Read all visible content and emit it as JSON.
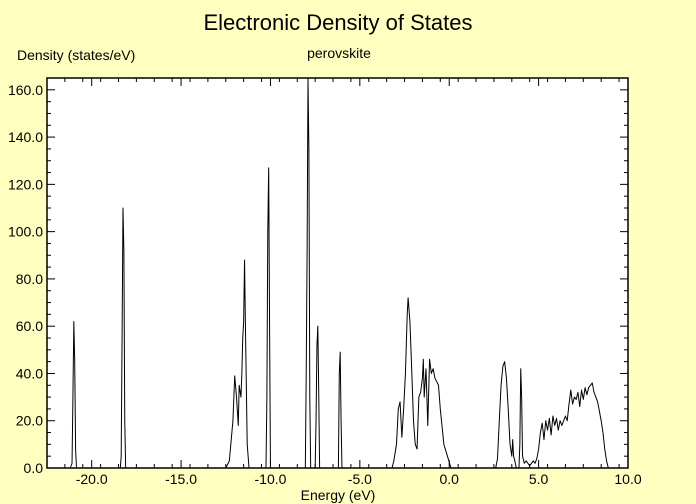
{
  "chart_data": {
    "type": "line",
    "title": "Electronic Density of States",
    "subtitle": "perovskite",
    "xlabel": "Energy (eV)",
    "ylabel": "Density (states/eV)",
    "xlim": [
      -22.5,
      10.0
    ],
    "ylim": [
      0,
      165
    ],
    "xticks": [
      -20,
      -15,
      -10,
      -5,
      0,
      5,
      10
    ],
    "xtick_labels": [
      "-20.0",
      "-15.0",
      "-10.0",
      "-5.0",
      "0.0",
      "5.0",
      "10.0"
    ],
    "yticks": [
      0,
      20,
      40,
      60,
      80,
      100,
      120,
      140,
      160
    ],
    "ytick_labels": [
      "0.0",
      "20.0",
      "40.0",
      "60.0",
      "80.0",
      "100.0",
      "120.0",
      "140.0",
      "160.0"
    ],
    "grid": false,
    "series": [
      {
        "color": "#000000",
        "points": [
          [
            -22.5,
            0
          ],
          [
            -21.2,
            0
          ],
          [
            -21.1,
            2
          ],
          [
            -21.05,
            30
          ],
          [
            -21.0,
            62
          ],
          [
            -20.95,
            45
          ],
          [
            -20.9,
            8
          ],
          [
            -20.85,
            0
          ],
          [
            -18.4,
            0
          ],
          [
            -18.35,
            5
          ],
          [
            -18.3,
            55
          ],
          [
            -18.25,
            110
          ],
          [
            -18.2,
            92
          ],
          [
            -18.15,
            20
          ],
          [
            -18.1,
            0
          ],
          [
            -12.5,
            0
          ],
          [
            -12.3,
            3
          ],
          [
            -12.1,
            20
          ],
          [
            -12.0,
            39
          ],
          [
            -11.9,
            30
          ],
          [
            -11.8,
            18
          ],
          [
            -11.75,
            35
          ],
          [
            -11.65,
            30
          ],
          [
            -11.6,
            40
          ],
          [
            -11.55,
            55
          ],
          [
            -11.5,
            62
          ],
          [
            -11.45,
            88
          ],
          [
            -11.4,
            60
          ],
          [
            -11.3,
            10
          ],
          [
            -11.2,
            0
          ],
          [
            -10.25,
            0
          ],
          [
            -10.2,
            30
          ],
          [
            -10.15,
            100
          ],
          [
            -10.1,
            127
          ],
          [
            -10.05,
            60
          ],
          [
            -10.0,
            0
          ],
          [
            -8.05,
            0
          ],
          [
            -8.0,
            40
          ],
          [
            -7.95,
            92
          ],
          [
            -7.9,
            165
          ],
          [
            -7.85,
            134
          ],
          [
            -7.8,
            30
          ],
          [
            -7.75,
            0
          ],
          [
            -7.5,
            0
          ],
          [
            -7.45,
            20
          ],
          [
            -7.4,
            52
          ],
          [
            -7.35,
            60
          ],
          [
            -7.3,
            32
          ],
          [
            -7.25,
            0
          ],
          [
            -6.2,
            0
          ],
          [
            -6.15,
            40
          ],
          [
            -6.1,
            49
          ],
          [
            -6.05,
            20
          ],
          [
            -6.0,
            0
          ],
          [
            -3.2,
            0
          ],
          [
            -3.1,
            3
          ],
          [
            -2.95,
            10
          ],
          [
            -2.85,
            25
          ],
          [
            -2.75,
            28
          ],
          [
            -2.65,
            13
          ],
          [
            -2.55,
            25
          ],
          [
            -2.45,
            40
          ],
          [
            -2.35,
            65
          ],
          [
            -2.3,
            72
          ],
          [
            -2.2,
            62
          ],
          [
            -2.1,
            42
          ],
          [
            -2.0,
            20
          ],
          [
            -1.9,
            10
          ],
          [
            -1.8,
            8
          ],
          [
            -1.7,
            30
          ],
          [
            -1.6,
            32
          ],
          [
            -1.5,
            38
          ],
          [
            -1.45,
            46
          ],
          [
            -1.4,
            30
          ],
          [
            -1.3,
            42
          ],
          [
            -1.2,
            18
          ],
          [
            -1.1,
            46
          ],
          [
            -1.0,
            40
          ],
          [
            -0.9,
            42
          ],
          [
            -0.8,
            38
          ],
          [
            -0.6,
            35
          ],
          [
            -0.5,
            25
          ],
          [
            -0.3,
            10
          ],
          [
            -0.1,
            5
          ],
          [
            0.1,
            0
          ],
          [
            2.6,
            0
          ],
          [
            2.7,
            4
          ],
          [
            2.8,
            20
          ],
          [
            2.9,
            35
          ],
          [
            3.0,
            43
          ],
          [
            3.1,
            45
          ],
          [
            3.2,
            38
          ],
          [
            3.3,
            25
          ],
          [
            3.4,
            10
          ],
          [
            3.5,
            5
          ],
          [
            3.55,
            12
          ],
          [
            3.6,
            5
          ],
          [
            3.7,
            2
          ],
          [
            3.75,
            0
          ],
          [
            3.9,
            0
          ],
          [
            3.95,
            10
          ],
          [
            4.0,
            42
          ],
          [
            4.05,
            30
          ],
          [
            4.1,
            5
          ],
          [
            4.2,
            2
          ],
          [
            4.3,
            3
          ],
          [
            4.5,
            1
          ],
          [
            4.7,
            3
          ],
          [
            4.8,
            2
          ],
          [
            4.9,
            4
          ],
          [
            5.0,
            8
          ],
          [
            5.1,
            15
          ],
          [
            5.2,
            19
          ],
          [
            5.3,
            12
          ],
          [
            5.4,
            20
          ],
          [
            5.5,
            16
          ],
          [
            5.6,
            21
          ],
          [
            5.7,
            14
          ],
          [
            5.8,
            22
          ],
          [
            5.9,
            18
          ],
          [
            6.0,
            21
          ],
          [
            6.1,
            16
          ],
          [
            6.2,
            20
          ],
          [
            6.3,
            18
          ],
          [
            6.5,
            22
          ],
          [
            6.6,
            20
          ],
          [
            6.7,
            27
          ],
          [
            6.8,
            33
          ],
          [
            6.9,
            27
          ],
          [
            7.0,
            30
          ],
          [
            7.1,
            29
          ],
          [
            7.2,
            32
          ],
          [
            7.3,
            26
          ],
          [
            7.4,
            33
          ],
          [
            7.5,
            29
          ],
          [
            7.6,
            34
          ],
          [
            7.7,
            31
          ],
          [
            7.8,
            34
          ],
          [
            8.0,
            36
          ],
          [
            8.1,
            32
          ],
          [
            8.2,
            30
          ],
          [
            8.3,
            28
          ],
          [
            8.4,
            24
          ],
          [
            8.5,
            20
          ],
          [
            8.6,
            15
          ],
          [
            8.7,
            8
          ],
          [
            8.8,
            3
          ],
          [
            8.9,
            0
          ],
          [
            10.0,
            0
          ]
        ]
      }
    ]
  }
}
